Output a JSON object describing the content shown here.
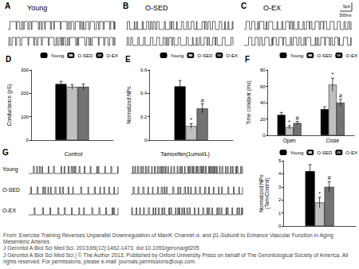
{
  "trace_panels": [
    {
      "label": "A",
      "title": "Young"
    },
    {
      "label": "B",
      "title": "O-SED"
    },
    {
      "label": "C",
      "title": "O-EX"
    }
  ],
  "scale_bar": [
    "5pA",
    "500ms"
  ],
  "panel_g": {
    "label": "G",
    "columns": [
      "Control",
      "Tamoxifen(1umol/L)"
    ],
    "rows": [
      "Young",
      "O-SED",
      "O-EX"
    ]
  },
  "chart_data": [
    {
      "type": "bar",
      "title": "D",
      "ylabel": "Conductance (pS)",
      "categories": [
        null
      ],
      "series": [
        {
          "name": "Young",
          "color": "#000000",
          "values": [
            240
          ],
          "errors": [
            12
          ]
        },
        {
          "name": "O-SED",
          "color": "#bfbfbf",
          "values": [
            228
          ],
          "errors": [
            10
          ]
        },
        {
          "name": "O-EX",
          "color": "#737373",
          "values": [
            228
          ],
          "errors": [
            12
          ]
        }
      ],
      "ylim": [
        0,
        300
      ],
      "yticks": [
        0,
        100,
        200,
        300
      ],
      "grid": false,
      "legend": "upper right"
    },
    {
      "type": "bar",
      "title": "E",
      "ylabel": "Normalized NPo",
      "categories": [
        null
      ],
      "series": [
        {
          "name": "Young",
          "color": "#000000",
          "values": [
            0.46
          ],
          "errors": [
            0.05
          ]
        },
        {
          "name": "O-SED",
          "color": "#bfbfbf",
          "values": [
            0.12
          ],
          "errors": [
            0.02
          ],
          "annotations": [
            "*"
          ]
        },
        {
          "name": "O-EX",
          "color": "#737373",
          "values": [
            0.27
          ],
          "errors": [
            0.04
          ],
          "annotations": [
            "#"
          ]
        }
      ],
      "ylim": [
        0,
        0.6
      ],
      "yticks": [
        0,
        0.2,
        0.4,
        0.6
      ],
      "grid": false,
      "legend": "upper right"
    },
    {
      "type": "bar",
      "title": "F",
      "ylabel": "Time constant (ms)",
      "categories": [
        "Open",
        "Close"
      ],
      "series": [
        {
          "name": "Young",
          "color": "#000000",
          "values": [
            25,
            32
          ],
          "errors": [
            3,
            3
          ]
        },
        {
          "name": "O-SED",
          "color": "#bfbfbf",
          "values": [
            10,
            62
          ],
          "errors": [
            2,
            8
          ],
          "annotations": [
            "*",
            "*"
          ]
        },
        {
          "name": "O-EX",
          "color": "#737373",
          "values": [
            15,
            40
          ],
          "errors": [
            2,
            4
          ],
          "annotations": [
            "#",
            "#"
          ]
        }
      ],
      "ylim": [
        0,
        80
      ],
      "yticks": [
        0,
        20,
        40,
        60,
        80
      ],
      "grid": false,
      "legend": "upper right"
    },
    {
      "type": "bar",
      "ylabel": "Normalized NPo (Tam/Control)",
      "categories": [
        null
      ],
      "series": [
        {
          "name": "Young",
          "color": "#000000",
          "values": [
            4.2
          ],
          "errors": [
            0.5
          ]
        },
        {
          "name": "O-SED",
          "color": "#bfbfbf",
          "values": [
            1.8
          ],
          "errors": [
            0.4
          ],
          "annotations": [
            "*"
          ]
        },
        {
          "name": "O-EX",
          "color": "#737373",
          "values": [
            3.0
          ],
          "errors": [
            0.4
          ],
          "annotations": [
            "#"
          ]
        }
      ],
      "ylim": [
        0,
        5
      ],
      "yticks": [
        0,
        1,
        2,
        3,
        4,
        5
      ],
      "grid": false,
      "legend": "upper right"
    }
  ],
  "caption": [
    "From: Exercise Training Reverses Unparallel Downregulation of MaxiK Channel α- and β1-Subunit to Enhance Vascular Function in Aging Mesenteric Arteries",
    "J Gerontol A Biol Sci Med Sci. 2013;69(12):1462-1473. doi:10.1093/gerona/glt205",
    "J Gerontol A Biol Sci Med Sci | © The Author 2013. Published by Oxford University Press on behalf of The Gerontological Society of America. All rights reserved. For permissions, please e-mail: journals.permissions@oup.com."
  ]
}
